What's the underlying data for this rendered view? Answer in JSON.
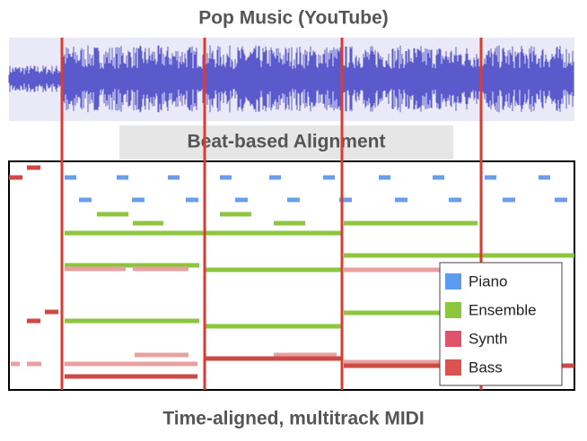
{
  "title": "Pop Music (YouTube)",
  "alignment_label": "Beat-based Alignment",
  "legend": [
    "Piano",
    "Ensemble",
    "Synth",
    "Bass"
  ],
  "caption": "Time-aligned, multitrack MIDI"
}
